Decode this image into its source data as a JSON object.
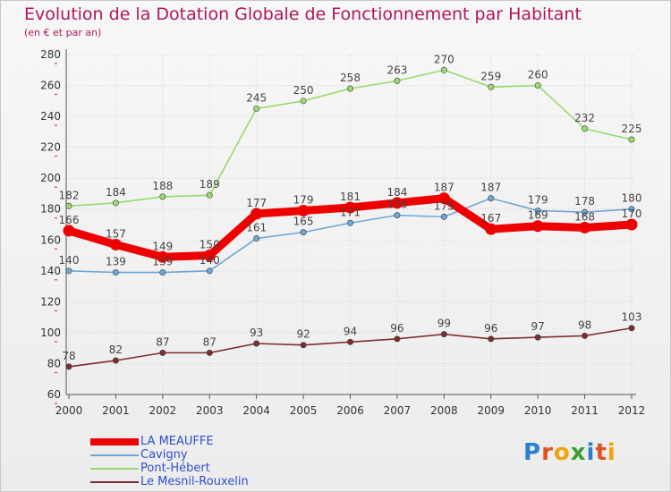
{
  "header": {
    "title": "Evolution de la Dotation Globale de Fonctionnement par Habitant",
    "subtitle": "(en € et par an)"
  },
  "logo": {
    "text": "Proxiti",
    "letter_colors": [
      "#2f7fd0",
      "#e0531f",
      "#f2a20c",
      "#3a9d2f",
      "#2f7fd0",
      "#e0531f",
      "#f2a20c"
    ]
  },
  "chart_data": {
    "type": "line",
    "title": "Evolution de la Dotation Globale de Fonctionnement par Habitant",
    "subtitle": "(en € et par an)",
    "xlabel": "",
    "ylabel": "",
    "x": [
      "2000",
      "2001",
      "2002",
      "2003",
      "2004",
      "2005",
      "2006",
      "2007",
      "2008",
      "2009",
      "2010",
      "2011",
      "2012"
    ],
    "ylim": [
      60,
      280
    ],
    "yticks": [
      60,
      80,
      100,
      120,
      140,
      160,
      180,
      200,
      220,
      240,
      260,
      280
    ],
    "grid": true,
    "legend_position": "bottom-left",
    "series": [
      {
        "name": "LA MEAUFFE",
        "color": "#ee0000",
        "emphasis": true,
        "values": [
          166,
          157,
          149,
          150,
          177,
          179,
          181,
          184,
          187,
          167,
          169,
          168,
          170
        ]
      },
      {
        "name": "Cavigny",
        "color": "#6fa6d4",
        "emphasis": false,
        "values": [
          140,
          139,
          139,
          140,
          161,
          165,
          171,
          176,
          175,
          187,
          179,
          178,
          180
        ]
      },
      {
        "name": "Pont-Hébert",
        "color": "#9ad970",
        "emphasis": false,
        "values": [
          182,
          184,
          188,
          189,
          245,
          250,
          258,
          263,
          270,
          259,
          260,
          232,
          225
        ]
      },
      {
        "name": "Le Mesnil-Rouxelin",
        "color": "#7a2e2e",
        "emphasis": false,
        "values": [
          78,
          82,
          87,
          87,
          93,
          92,
          94,
          96,
          99,
          96,
          97,
          98,
          103
        ]
      }
    ]
  }
}
